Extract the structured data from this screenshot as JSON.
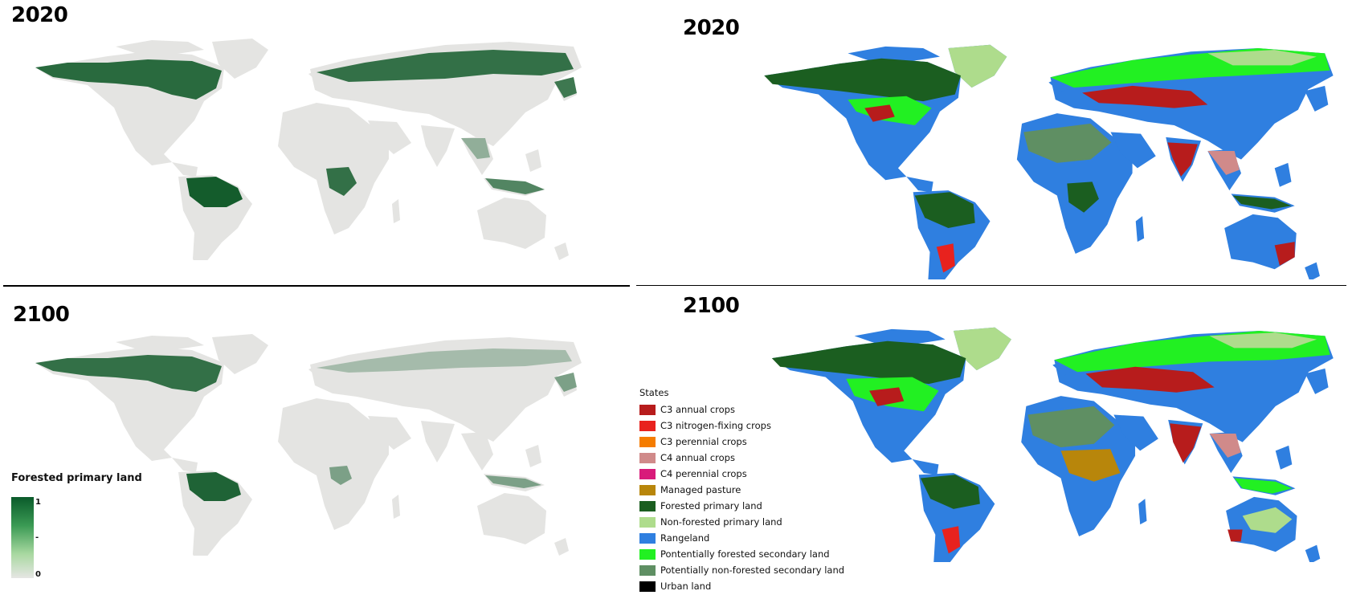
{
  "panels": {
    "top_left_year": "2020",
    "top_right_year": "2020",
    "bottom_left_year": "2100",
    "bottom_right_year": "2100"
  },
  "colorbar": {
    "title": "Forested primary land",
    "tick_max": "1",
    "tick_mid": "-",
    "tick_min": "0",
    "color_high": "#0a5a2a",
    "color_low": "#e6e6e4"
  },
  "legend": {
    "title": "States",
    "items": [
      {
        "label": "C3 annual crops",
        "color": "#b71c1c"
      },
      {
        "label": "C3 nitrogen-fixing crops",
        "color": "#e8221e"
      },
      {
        "label": "C3 perennial crops",
        "color": "#f57c00"
      },
      {
        "label": "C4 annual crops",
        "color": "#d08a8a"
      },
      {
        "label": "C4 perennial crops",
        "color": "#d81b7a"
      },
      {
        "label": "Managed pasture",
        "color": "#b8860b"
      },
      {
        "label": "Forested primary land",
        "color": "#1b5e20"
      },
      {
        "label": "Non-forested primary land",
        "color": "#aedc8c"
      },
      {
        "label": "Rangeland",
        "color": "#2f7fe0"
      },
      {
        "label": "Pontentially forested secondary land",
        "color": "#22f022"
      },
      {
        "label": "Potentially non-forested secondary land",
        "color": "#5f8f63"
      },
      {
        "label": "Urban land",
        "color": "#000000"
      }
    ]
  }
}
